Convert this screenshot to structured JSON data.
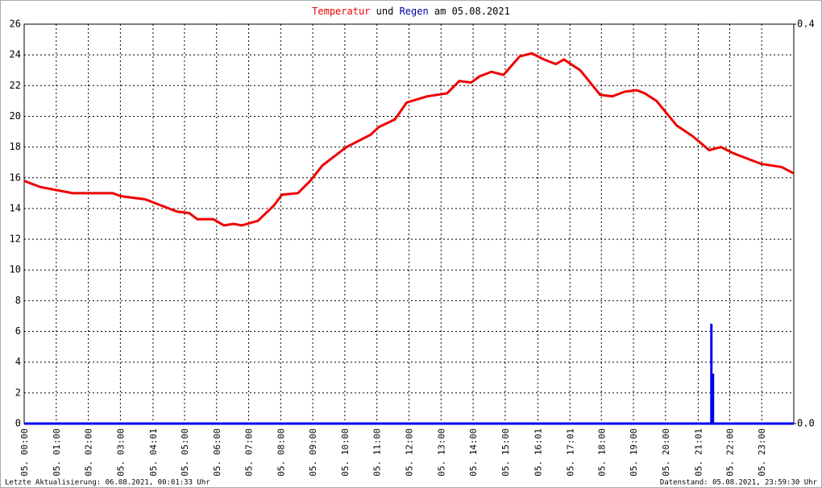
{
  "chart_data": {
    "type": "line",
    "title_middle": "und",
    "title_suffix": "am 05.08.2021",
    "footer_left": "Letzte Aktualisierung: 06.08.2021, 00:01:33 Uhr",
    "footer_right": "Datenstand: 05.08.2021, 23:59:30 Uhr",
    "xlim": [
      0,
      24
    ],
    "xticks": [
      {
        "value": 0,
        "label": "05. 00:00"
      },
      {
        "value": 1,
        "label": "05. 01:00"
      },
      {
        "value": 2,
        "label": "05. 02:00"
      },
      {
        "value": 3,
        "label": "05. 03:00"
      },
      {
        "value": 4.02,
        "label": "05. 04:01"
      },
      {
        "value": 5,
        "label": "05. 05:00"
      },
      {
        "value": 6,
        "label": "05. 06:00"
      },
      {
        "value": 7,
        "label": "05. 07:00"
      },
      {
        "value": 8,
        "label": "05. 08:00"
      },
      {
        "value": 9,
        "label": "05. 09:00"
      },
      {
        "value": 10,
        "label": "05. 10:00"
      },
      {
        "value": 11,
        "label": "05. 11:00"
      },
      {
        "value": 12,
        "label": "05. 12:00"
      },
      {
        "value": 13,
        "label": "05. 13:00"
      },
      {
        "value": 14,
        "label": "05. 14:00"
      },
      {
        "value": 15,
        "label": "05. 15:00"
      },
      {
        "value": 16.02,
        "label": "05. 16:01"
      },
      {
        "value": 17.02,
        "label": "05. 17:01"
      },
      {
        "value": 18,
        "label": "05. 18:00"
      },
      {
        "value": 19,
        "label": "05. 19:00"
      },
      {
        "value": 20,
        "label": "05. 20:00"
      },
      {
        "value": 21.02,
        "label": "05. 21:01"
      },
      {
        "value": 22,
        "label": "05. 22:00"
      },
      {
        "value": 23,
        "label": "05. 23:00"
      }
    ],
    "ylim": [
      0,
      26
    ],
    "yticks": [
      0,
      2,
      4,
      6,
      8,
      10,
      12,
      14,
      16,
      18,
      20,
      22,
      24,
      26
    ],
    "y2lim": [
      0,
      0.4
    ],
    "y2ticks": [
      {
        "value": 0,
        "label": "0.0"
      },
      0.4
    ],
    "grid": true,
    "series": [
      {
        "name": "Temperatur",
        "color": "#ee0000",
        "type": "line",
        "x": [
          0,
          0.5,
          1.0,
          1.51,
          2.76,
          3.02,
          3.77,
          4.27,
          4.77,
          5.15,
          5.4,
          5.9,
          6.23,
          6.53,
          6.78,
          7.29,
          7.79,
          8.04,
          8.54,
          8.92,
          9.3,
          10.05,
          10.8,
          11.06,
          11.56,
          11.93,
          12.56,
          13.19,
          13.57,
          13.94,
          14.2,
          14.57,
          14.95,
          15.45,
          15.83,
          16.21,
          16.58,
          16.83,
          17.34,
          17.96,
          18.34,
          18.72,
          19.1,
          19.35,
          19.72,
          20.35,
          20.85,
          21.36,
          21.73,
          22.11,
          22.61,
          22.99,
          23.62,
          23.99
        ],
        "values": [
          15.8,
          15.4,
          15.2,
          15.0,
          15.0,
          14.8,
          14.6,
          14.2,
          13.8,
          13.7,
          13.3,
          13.3,
          12.9,
          13.0,
          12.9,
          13.2,
          14.2,
          14.9,
          15.0,
          15.8,
          16.8,
          18.0,
          18.8,
          19.3,
          19.8,
          20.9,
          21.3,
          21.5,
          22.3,
          22.2,
          22.6,
          22.9,
          22.7,
          23.9,
          24.1,
          23.7,
          23.4,
          23.7,
          23.0,
          21.4,
          21.3,
          21.6,
          21.7,
          21.5,
          21.0,
          19.4,
          18.7,
          17.8,
          18.0,
          17.6,
          17.2,
          16.9,
          16.7,
          16.3
        ]
      },
      {
        "name": "Regen",
        "color": "#0000ee",
        "type": "bar",
        "axis": "y2",
        "x": [
          0,
          21.43,
          21.48,
          24
        ],
        "values": [
          0,
          0.1,
          0.05,
          0
        ]
      }
    ]
  }
}
